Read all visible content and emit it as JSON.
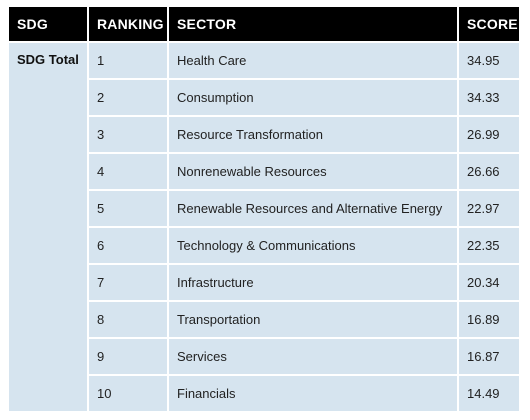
{
  "table": {
    "headers": [
      "SDG",
      "RANKING",
      "SECTOR",
      "SCORE"
    ],
    "sdg_group": "SDG Total",
    "rows": [
      {
        "ranking": "1",
        "sector": "Health Care",
        "score": "34.95"
      },
      {
        "ranking": "2",
        "sector": "Consumption",
        "score": "34.33"
      },
      {
        "ranking": "3",
        "sector": "Resource Transformation",
        "score": "26.99"
      },
      {
        "ranking": "4",
        "sector": "Nonrenewable Resources",
        "score": "26.66"
      },
      {
        "ranking": "5",
        "sector": "Renewable Resources and Alternative Energy",
        "score": "22.97"
      },
      {
        "ranking": "6",
        "sector": "Technology & Communications",
        "score": "22.35"
      },
      {
        "ranking": "7",
        "sector": "Infrastructure",
        "score": "20.34"
      },
      {
        "ranking": "8",
        "sector": "Transportation",
        "score": "16.89"
      },
      {
        "ranking": "9",
        "sector": "Services",
        "score": "16.87"
      },
      {
        "ranking": "10",
        "sector": "Financials",
        "score": "14.49"
      }
    ]
  }
}
